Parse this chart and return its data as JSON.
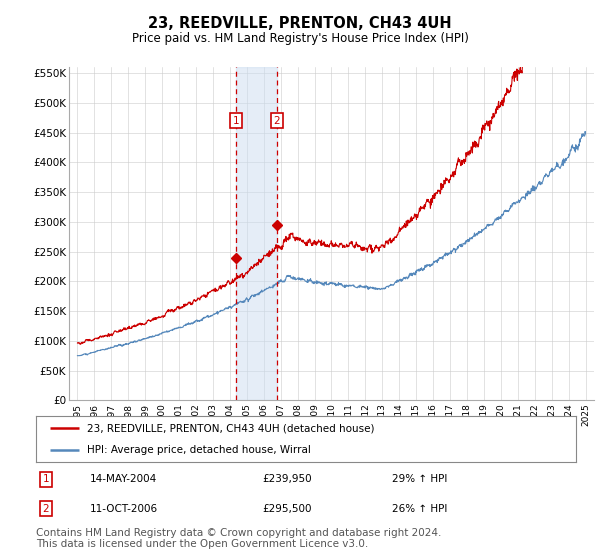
{
  "title": "23, REEDVILLE, PRENTON, CH43 4UH",
  "subtitle": "Price paid vs. HM Land Registry's House Price Index (HPI)",
  "legend_line1": "23, REEDVILLE, PRENTON, CH43 4UH (detached house)",
  "legend_line2": "HPI: Average price, detached house, Wirral",
  "sale1_date": "14-MAY-2004",
  "sale1_price": "£239,950",
  "sale1_hpi": "29% ↑ HPI",
  "sale1_year": 2004.37,
  "sale1_value": 239950,
  "sale2_date": "11-OCT-2006",
  "sale2_price": "£295,500",
  "sale2_hpi": "26% ↑ HPI",
  "sale2_year": 2006.78,
  "sale2_value": 295500,
  "hpi_color": "#5588bb",
  "price_color": "#cc0000",
  "sale_marker_color": "#cc0000",
  "highlight_color": "#ccddf0",
  "ylim": [
    0,
    560000
  ],
  "yticks": [
    0,
    50000,
    100000,
    150000,
    200000,
    250000,
    300000,
    350000,
    400000,
    450000,
    500000,
    550000
  ],
  "footer": "Contains HM Land Registry data © Crown copyright and database right 2024.\nThis data is licensed under the Open Government Licence v3.0.",
  "footnote_fontsize": 7.5,
  "bg_color": "#ffffff"
}
